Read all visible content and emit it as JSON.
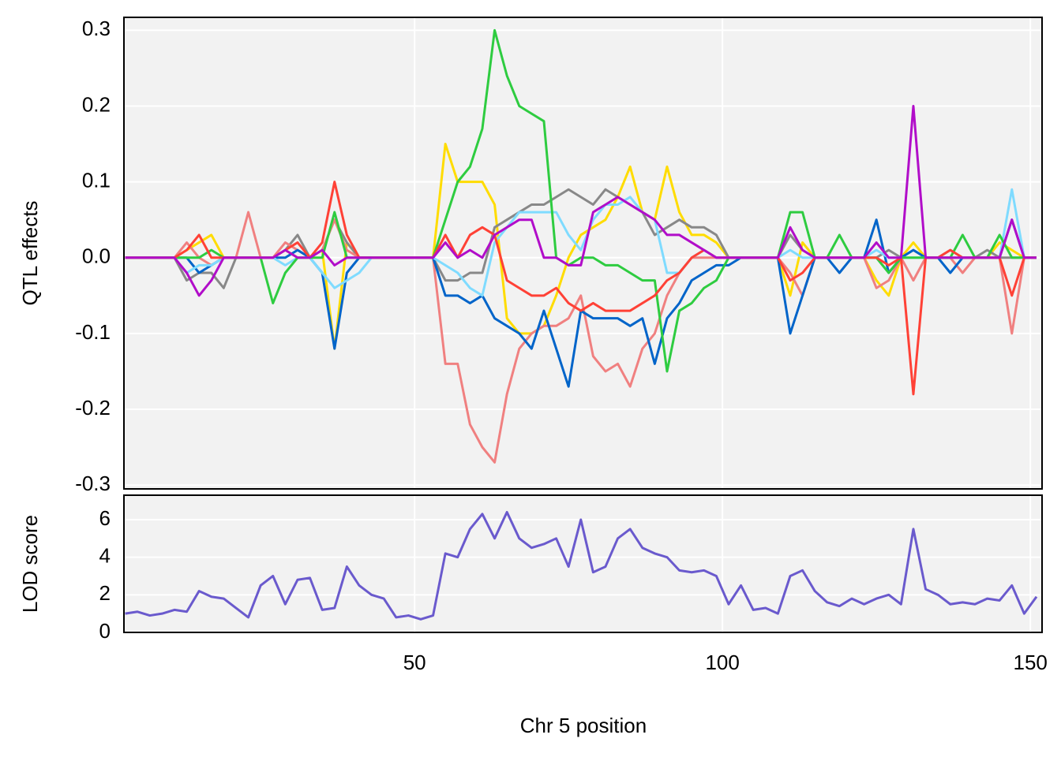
{
  "chart_data": [
    {
      "type": "line",
      "ylabel": "QTL effects",
      "x": [
        3,
        5,
        7,
        9,
        11,
        13,
        15,
        17,
        19,
        21,
        23,
        25,
        27,
        29,
        31,
        33,
        35,
        37,
        39,
        41,
        43,
        45,
        47,
        49,
        51,
        53,
        55,
        57,
        59,
        61,
        63,
        65,
        67,
        69,
        71,
        73,
        75,
        77,
        79,
        81,
        83,
        85,
        87,
        89,
        91,
        93,
        95,
        97,
        99,
        101,
        103,
        105,
        107,
        109,
        111,
        113,
        115,
        117,
        119,
        121,
        123,
        125,
        127,
        129,
        131,
        133,
        135,
        137,
        139,
        141,
        143,
        145,
        147,
        149,
        151
      ],
      "xlim": [
        2.8,
        151.9
      ],
      "ylim": [
        -0.305,
        0.317
      ],
      "yticks": [
        -0.3,
        -0.2,
        -0.1,
        {
          "value": 0,
          "label": "0.0"
        },
        0.1,
        0.2,
        0.3
      ],
      "grid": true,
      "series": [
        {
          "color": "#FFDC00",
          "values": [
            0,
            0,
            0,
            0,
            0,
            0.01,
            0.02,
            0.03,
            0,
            0,
            0,
            0,
            0,
            0.01,
            0,
            0,
            0.01,
            -0.12,
            0.02,
            0,
            0,
            0,
            0,
            0,
            0,
            0,
            0.15,
            0.1,
            0.1,
            0.1,
            0.07,
            -0.08,
            -0.1,
            -0.1,
            -0.09,
            -0.05,
            0,
            0.03,
            0.04,
            0.05,
            0.08,
            0.12,
            0.06,
            0.05,
            0.12,
            0.06,
            0.03,
            0.03,
            0.02,
            0,
            0,
            0,
            0,
            0,
            -0.05,
            0.02,
            0,
            0,
            0,
            0,
            0,
            -0.03,
            -0.05,
            0,
            0.02,
            0,
            0,
            0,
            0,
            0,
            0,
            0.02,
            0.01,
            0,
            0
          ]
        },
        {
          "color": "#888888",
          "values": [
            0,
            0,
            0,
            0,
            0,
            -0.03,
            -0.02,
            -0.02,
            -0.04,
            0,
            0,
            0,
            0,
            0.01,
            0.03,
            0,
            0.01,
            0.05,
            0.02,
            0,
            0,
            0,
            0,
            0,
            0,
            0,
            -0.03,
            -0.03,
            -0.02,
            -0.02,
            0.04,
            0.05,
            0.06,
            0.07,
            0.07,
            0.08,
            0.09,
            0.08,
            0.07,
            0.09,
            0.08,
            0.07,
            0.06,
            0.03,
            0.04,
            0.05,
            0.04,
            0.04,
            0.03,
            0,
            0,
            0,
            0,
            0,
            0.03,
            0.01,
            0,
            0,
            0,
            0,
            0,
            0,
            0.01,
            0,
            0.01,
            0,
            0,
            0.01,
            0,
            0,
            0.01,
            0,
            0,
            0,
            0
          ]
        },
        {
          "color": "#F08080",
          "values": [
            0,
            0,
            0,
            0,
            0,
            0.02,
            0,
            -0.01,
            0,
            0,
            0.06,
            0,
            0,
            0.02,
            0.01,
            0,
            0.01,
            0.05,
            0.01,
            0,
            0,
            0,
            0,
            0,
            0,
            0,
            -0.14,
            -0.14,
            -0.22,
            -0.25,
            -0.27,
            -0.18,
            -0.12,
            -0.1,
            -0.09,
            -0.09,
            -0.08,
            -0.05,
            -0.13,
            -0.15,
            -0.14,
            -0.17,
            -0.12,
            -0.1,
            -0.05,
            -0.02,
            0,
            0,
            0,
            0,
            0,
            0,
            0,
            0,
            -0.02,
            -0.05,
            0,
            0,
            0,
            0,
            0,
            -0.04,
            -0.03,
            0,
            -0.03,
            0,
            0,
            0,
            -0.02,
            0,
            0,
            0,
            -0.1,
            0,
            0
          ]
        },
        {
          "color": "#0064C9",
          "values": [
            0,
            0,
            0,
            0,
            0,
            0,
            -0.02,
            -0.01,
            0,
            0,
            0,
            0,
            0,
            0,
            0.01,
            0,
            -0.02,
            -0.12,
            -0.02,
            0,
            0,
            0,
            0,
            0,
            0,
            0,
            -0.05,
            -0.05,
            -0.06,
            -0.05,
            -0.08,
            -0.09,
            -0.1,
            -0.12,
            -0.07,
            -0.12,
            -0.17,
            -0.07,
            -0.08,
            -0.08,
            -0.08,
            -0.09,
            -0.08,
            -0.14,
            -0.08,
            -0.06,
            -0.03,
            -0.02,
            -0.01,
            -0.01,
            0,
            0,
            0,
            0,
            -0.1,
            -0.05,
            0,
            0,
            -0.02,
            0,
            0,
            0.05,
            -0.02,
            0,
            0.01,
            0,
            0,
            -0.02,
            0,
            0,
            0,
            0,
            0.05,
            0,
            0
          ]
        },
        {
          "color": "#7FDBFF",
          "values": [
            0,
            0,
            0,
            0,
            0,
            -0.02,
            -0.01,
            -0.01,
            0,
            0,
            0,
            0,
            0,
            -0.01,
            0,
            0,
            -0.02,
            -0.04,
            -0.03,
            -0.02,
            0,
            0,
            0,
            0,
            0,
            0,
            -0.01,
            -0.02,
            -0.04,
            -0.05,
            0.02,
            0.04,
            0.06,
            0.06,
            0.06,
            0.06,
            0.03,
            0.01,
            0.05,
            0.07,
            0.07,
            0.08,
            0.06,
            0.05,
            -0.02,
            -0.02,
            0,
            0.01,
            0,
            0,
            0,
            0,
            0,
            0,
            0.01,
            0,
            0,
            0,
            0,
            0,
            0,
            0.01,
            0,
            0,
            0,
            0,
            0,
            0,
            0,
            0,
            0,
            0,
            0.09,
            0,
            0
          ]
        },
        {
          "color": "#2ECC40",
          "values": [
            0,
            0,
            0,
            0,
            0,
            0,
            0,
            0.01,
            0,
            0,
            0,
            0,
            -0.06,
            -0.02,
            0,
            0,
            0,
            0.06,
            0,
            0,
            0,
            0,
            0,
            0,
            0,
            0,
            0.05,
            0.1,
            0.12,
            0.17,
            0.3,
            0.24,
            0.2,
            0.19,
            0.18,
            0,
            -0.01,
            0,
            0,
            -0.01,
            -0.01,
            -0.02,
            -0.03,
            -0.03,
            -0.15,
            -0.07,
            -0.06,
            -0.04,
            -0.03,
            0,
            0,
            0,
            0,
            0,
            0.06,
            0.06,
            0,
            0,
            0.03,
            0,
            0,
            0,
            -0.02,
            0,
            0,
            0,
            0,
            0,
            0.03,
            0,
            0,
            0.03,
            0,
            0,
            0
          ]
        },
        {
          "color": "#FF4136",
          "values": [
            0,
            0,
            0,
            0,
            0,
            0.01,
            0.03,
            0,
            0,
            0,
            0,
            0,
            0,
            0.01,
            0.02,
            0,
            0.02,
            0.1,
            0.03,
            0,
            0,
            0,
            0,
            0,
            0,
            0,
            0.03,
            0,
            0.03,
            0.04,
            0.03,
            -0.03,
            -0.04,
            -0.05,
            -0.05,
            -0.04,
            -0.06,
            -0.07,
            -0.06,
            -0.07,
            -0.07,
            -0.07,
            -0.06,
            -0.05,
            -0.03,
            -0.02,
            0,
            0.01,
            0,
            0,
            0,
            0,
            0,
            0,
            -0.03,
            -0.02,
            0,
            0,
            0,
            0,
            0,
            0,
            -0.01,
            0,
            -0.18,
            0,
            0,
            0.01,
            0,
            0,
            0,
            0,
            -0.05,
            0,
            0
          ]
        },
        {
          "color": "#B10DC9",
          "values": [
            0,
            0,
            0,
            0,
            0,
            -0.02,
            -0.05,
            -0.03,
            0,
            0,
            0,
            0,
            0,
            0.01,
            0,
            0,
            0.01,
            -0.01,
            0,
            0,
            0,
            0,
            0,
            0,
            0,
            0,
            0.02,
            0,
            0.01,
            0,
            0.03,
            0.04,
            0.05,
            0.05,
            0,
            0,
            -0.01,
            -0.01,
            0.06,
            0.07,
            0.08,
            0.07,
            0.06,
            0.05,
            0.03,
            0.03,
            0.02,
            0.01,
            0,
            0,
            0,
            0,
            0,
            0,
            0.04,
            0.01,
            0,
            0,
            0,
            0,
            0,
            0.02,
            0,
            0,
            0.2,
            0,
            0,
            0,
            0,
            0,
            0,
            0,
            0.05,
            0,
            0
          ]
        }
      ]
    },
    {
      "type": "line",
      "ylabel": "LOD score",
      "xlabel": "Chr 5 position",
      "x": [
        3,
        5,
        7,
        9,
        11,
        13,
        15,
        17,
        19,
        21,
        23,
        25,
        27,
        29,
        31,
        33,
        35,
        37,
        39,
        41,
        43,
        45,
        47,
        49,
        51,
        53,
        55,
        57,
        59,
        61,
        63,
        65,
        67,
        69,
        71,
        73,
        75,
        77,
        79,
        81,
        83,
        85,
        87,
        89,
        91,
        93,
        95,
        97,
        99,
        101,
        103,
        105,
        107,
        109,
        111,
        113,
        115,
        117,
        119,
        121,
        123,
        125,
        127,
        129,
        131,
        133,
        135,
        137,
        139,
        141,
        143,
        145,
        147,
        149,
        151
      ],
      "xlim": [
        2.8,
        151.9
      ],
      "ylim": [
        0,
        7.3
      ],
      "xticks": [
        50,
        100,
        150
      ],
      "yticks": [
        0,
        2,
        4,
        6
      ],
      "grid": true,
      "series": [
        {
          "color": "#6A5ACD",
          "values": [
            1.0,
            1.1,
            0.9,
            1.0,
            1.2,
            1.1,
            2.2,
            1.9,
            1.8,
            1.3,
            0.8,
            2.5,
            3.0,
            1.5,
            2.8,
            2.9,
            1.2,
            1.3,
            3.5,
            2.5,
            2.0,
            1.8,
            0.8,
            0.9,
            0.7,
            0.9,
            4.2,
            4.0,
            5.5,
            6.3,
            5.0,
            6.4,
            5.0,
            4.5,
            4.7,
            5.0,
            3.5,
            6.0,
            3.2,
            3.5,
            5.0,
            5.5,
            4.5,
            4.2,
            4.0,
            3.3,
            3.2,
            3.3,
            3.0,
            1.5,
            2.5,
            1.2,
            1.3,
            1.0,
            3.0,
            3.3,
            2.2,
            1.6,
            1.4,
            1.8,
            1.5,
            1.8,
            2.0,
            1.5,
            5.5,
            2.3,
            2.0,
            1.5,
            1.6,
            1.5,
            1.8,
            1.7,
            2.5,
            1.0,
            1.9
          ]
        }
      ]
    }
  ]
}
